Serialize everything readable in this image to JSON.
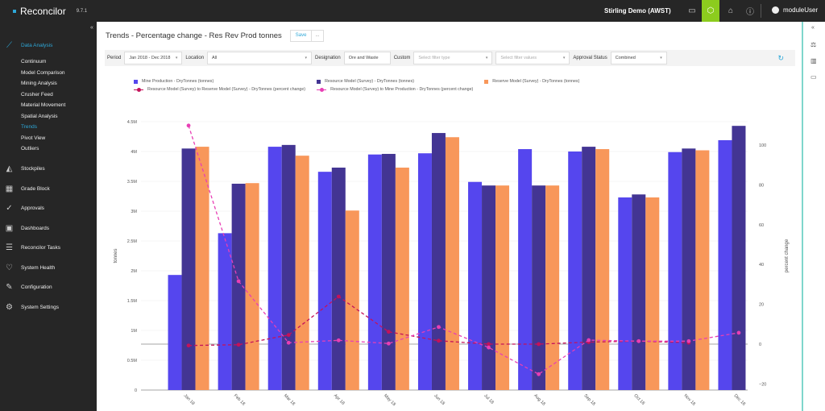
{
  "app": {
    "name": "Reconcilor",
    "version": "9.7.1",
    "site": "Stirling Demo (AWST)",
    "user": "moduleUser"
  },
  "topbar_icons": [
    "monitor-icon",
    "settings-icon",
    "home-notification-icon",
    "info-icon"
  ],
  "sidebar": {
    "section": "Data Analysis",
    "sub_items": [
      "Continuum",
      "Model Comparison",
      "Mining Analysis",
      "Crusher Feed",
      "Material Movement",
      "Spatial Analysis",
      "Trends",
      "Pivot View",
      "Outliers"
    ],
    "active_sub": "Trends",
    "sections": [
      "Stockpiles",
      "Grade Block",
      "Approvals",
      "Dashboards",
      "Reconcilor Tasks",
      "System Health",
      "Configuration",
      "System Settings"
    ]
  },
  "page": {
    "title": "Trends - Percentage change - Res Rev Prod tonnes",
    "save_label": "Save",
    "more_label": "..."
  },
  "filters": {
    "period_label": "Period",
    "period_value": "Jan 2018 - Dec 2018",
    "location_label": "Location",
    "location_value": "All",
    "designation_label": "Designation",
    "designation_value": "Ore and Waste",
    "custom_label": "Custom",
    "custom_type_placeholder": "Select filter type",
    "custom_values_placeholder": "Select filter values",
    "approval_label": "Approval Status",
    "approval_value": "Combined"
  },
  "colors": {
    "accent": "#2ea8d8",
    "active_tab": "#8ccc1e",
    "mine_production": "#5546ee",
    "resource_model": "#433593",
    "reserve_model": "#f8975a",
    "res_to_reserve": "#c4125a",
    "res_to_mine": "#e83fb5"
  },
  "chart_data": {
    "type": "bar",
    "categories": [
      "Jan 18",
      "Feb 18",
      "Mar 18",
      "Apr 18",
      "May 18",
      "Jun 18",
      "Jul 18",
      "Aug 18",
      "Sep 18",
      "Oct 18",
      "Nov 18",
      "Dec 18"
    ],
    "ylabel": "tonnes",
    "y2label": "percent change",
    "ylim": [
      0,
      4.5
    ],
    "y_unit": "M",
    "yticks": [
      "0",
      "0.5M",
      "1M",
      "1.5M",
      "2M",
      "2.5M",
      "3M",
      "3.5M",
      "4M",
      "4.5M"
    ],
    "y2ticks": [
      "−20",
      "0",
      "20",
      "40",
      "60",
      "80",
      "100"
    ],
    "y2lim": [
      -23,
      113
    ],
    "grid": true,
    "legend_position": "top",
    "series": [
      {
        "name": "Mine Production - DryTonnes (tonnes)",
        "type": "bar",
        "axis": "left",
        "values": [
          1.93,
          2.63,
          4.08,
          3.66,
          3.95,
          3.97,
          3.49,
          4.04,
          4.0,
          3.23,
          3.99,
          4.19
        ]
      },
      {
        "name": "Resource Model (Survey) - DryTonnes (tonnes)",
        "type": "bar",
        "axis": "left",
        "values": [
          4.05,
          3.46,
          4.11,
          3.73,
          3.96,
          4.31,
          3.43,
          3.43,
          4.08,
          3.28,
          4.05,
          4.43
        ]
      },
      {
        "name": "Reserve Model (Survey) - DryTonnes (tonnes)",
        "type": "bar",
        "axis": "left",
        "values": [
          4.08,
          3.47,
          3.93,
          3.01,
          3.73,
          4.24,
          3.43,
          3.43,
          4.04,
          3.23,
          4.02,
          null
        ]
      },
      {
        "name": "Resource Model (Survey) to Reserve Model (Survey) - DryTonnes (percent change)",
        "type": "line",
        "axis": "right",
        "values": [
          -0.7,
          -0.3,
          4.6,
          23.9,
          6.2,
          1.7,
          0,
          0,
          1.0,
          1.5,
          0.7,
          null
        ]
      },
      {
        "name": "Resource Model (Survey) to Mine Production - DryTonnes (percent change)",
        "type": "line",
        "axis": "right",
        "values": [
          109.8,
          31.6,
          0.7,
          1.9,
          0.3,
          8.6,
          -1.7,
          -15.1,
          2.0,
          1.5,
          1.5,
          5.7
        ]
      }
    ]
  }
}
